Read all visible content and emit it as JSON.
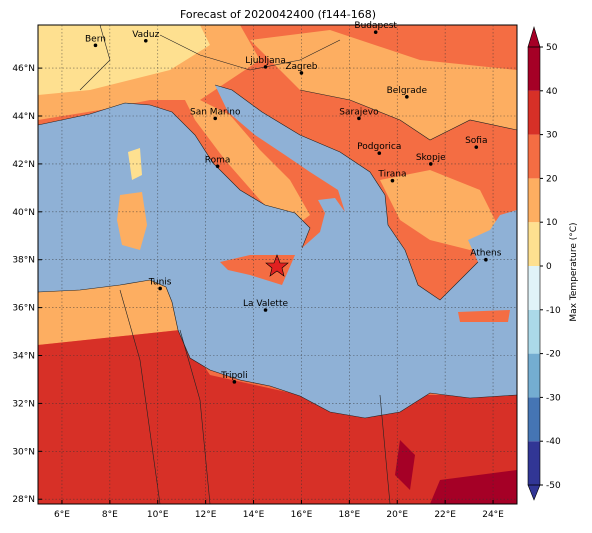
{
  "title": "Forecast of 2020042400 (f144-168)",
  "map": {
    "xlim": [
      5,
      25
    ],
    "ylim": [
      27.8,
      47.8
    ],
    "xticks": [
      {
        "value": 6,
        "label": "6°E"
      },
      {
        "value": 8,
        "label": "8°E"
      },
      {
        "value": 10,
        "label": "10°E"
      },
      {
        "value": 12,
        "label": "12°E"
      },
      {
        "value": 14,
        "label": "14°E"
      },
      {
        "value": 16,
        "label": "16°E"
      },
      {
        "value": 18,
        "label": "18°E"
      },
      {
        "value": 20,
        "label": "20°E"
      },
      {
        "value": 22,
        "label": "22°E"
      },
      {
        "value": 24,
        "label": "24°E"
      }
    ],
    "yticks": [
      {
        "value": 28,
        "label": "28°N"
      },
      {
        "value": 30,
        "label": "30°N"
      },
      {
        "value": 32,
        "label": "32°N"
      },
      {
        "value": 34,
        "label": "34°N"
      },
      {
        "value": 36,
        "label": "36°N"
      },
      {
        "value": 38,
        "label": "38°N"
      },
      {
        "value": 40,
        "label": "40°N"
      },
      {
        "value": 42,
        "label": "42°N"
      },
      {
        "value": 44,
        "label": "44°N"
      },
      {
        "value": 46,
        "label": "46°N"
      }
    ],
    "cities": [
      {
        "name": "Bern",
        "lon": 7.4,
        "lat": 46.95
      },
      {
        "name": "Vaduz",
        "lon": 9.5,
        "lat": 47.14
      },
      {
        "name": "Budapest",
        "lon": 19.1,
        "lat": 47.5
      },
      {
        "name": "Ljubljana",
        "lon": 14.5,
        "lat": 46.05
      },
      {
        "name": "Zagreb",
        "lon": 16.0,
        "lat": 45.8
      },
      {
        "name": "Belgrade",
        "lon": 20.4,
        "lat": 44.8
      },
      {
        "name": "San Marino",
        "lon": 12.4,
        "lat": 43.9
      },
      {
        "name": "Sarajevo",
        "lon": 18.4,
        "lat": 43.9
      },
      {
        "name": "Sofia",
        "lon": 23.3,
        "lat": 42.7
      },
      {
        "name": "Roma",
        "lon": 12.5,
        "lat": 41.9
      },
      {
        "name": "Podgorica",
        "lon": 19.25,
        "lat": 42.45
      },
      {
        "name": "Skopje",
        "lon": 21.4,
        "lat": 42.0
      },
      {
        "name": "Tirana",
        "lon": 19.8,
        "lat": 41.3
      },
      {
        "name": "Athens",
        "lon": 23.7,
        "lat": 38.0
      },
      {
        "name": "Tunis",
        "lon": 10.1,
        "lat": 36.8
      },
      {
        "name": "La Valette",
        "lon": 14.5,
        "lat": 35.9
      },
      {
        "name": "Tripoli",
        "lon": 13.2,
        "lat": 32.9
      }
    ]
  },
  "colorbar": {
    "label": "Max Temperature (°C)",
    "ticks": [
      -50,
      -40,
      -30,
      -20,
      -10,
      0,
      10,
      20,
      30,
      40,
      50
    ],
    "colors": [
      "#313695",
      "#4575b4",
      "#74add1",
      "#abd9e9",
      "#e0f3f8",
      "#fee090",
      "#fdae61",
      "#f46d43",
      "#d73027",
      "#a50026"
    ]
  }
}
